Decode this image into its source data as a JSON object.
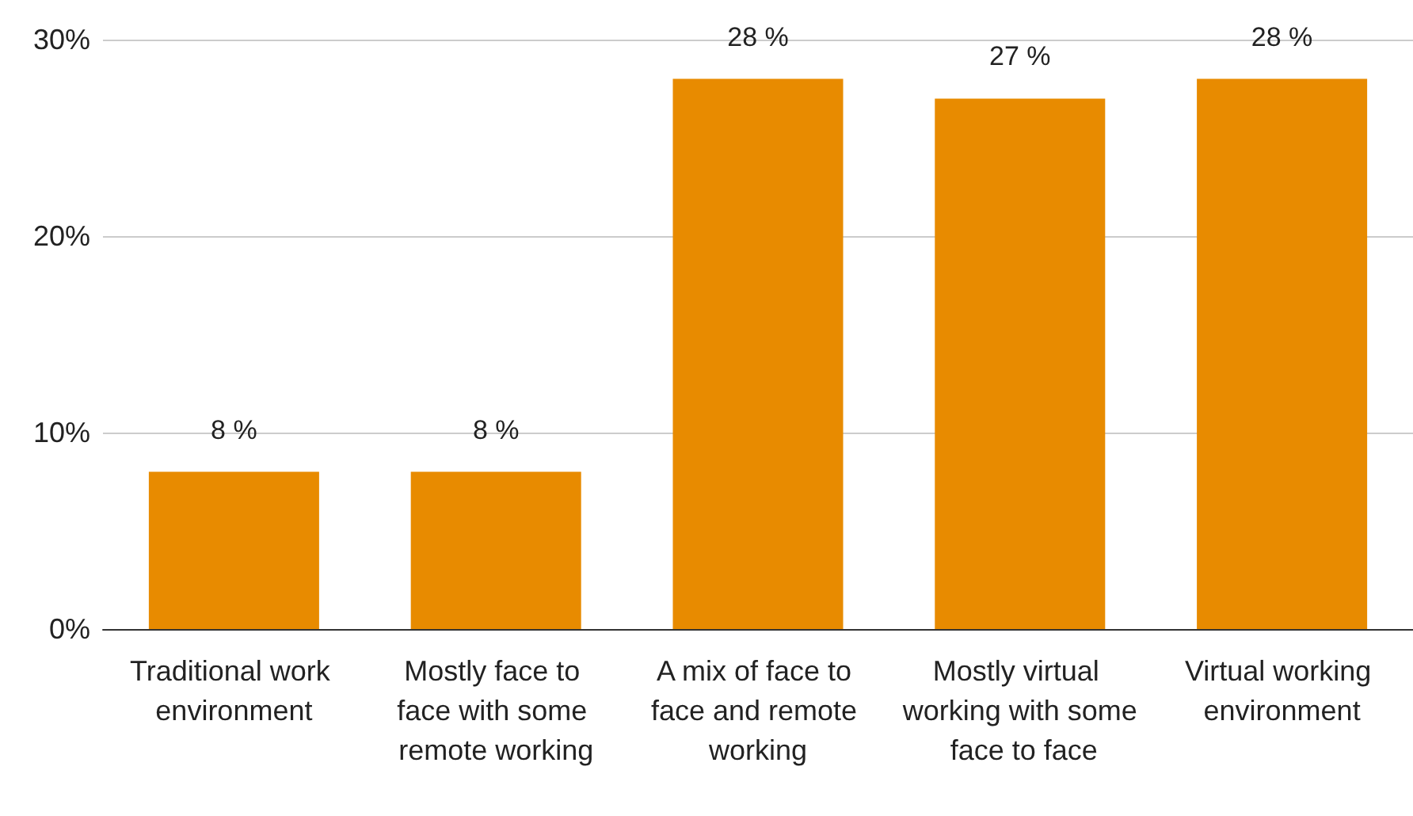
{
  "chart_data": {
    "type": "bar",
    "categories": [
      "Traditional work environment",
      "Mostly face to face with some remote working",
      "A mix of face to face and remote working",
      "Mostly virtual working with some face to face",
      "Virtual working environment"
    ],
    "values": [
      8,
      8,
      28,
      27,
      28
    ],
    "value_labels": [
      "8 %",
      "8 %",
      "28 %",
      "27 %",
      "28 %"
    ],
    "color": "#e88b00",
    "ylim": [
      0,
      30
    ],
    "yticks": [
      {
        "value": 0,
        "label": "0%"
      },
      {
        "value": 10,
        "label": "10%"
      },
      {
        "value": 20,
        "label": "20%"
      },
      {
        "value": 30,
        "label": "30%"
      }
    ],
    "grid": "y"
  }
}
